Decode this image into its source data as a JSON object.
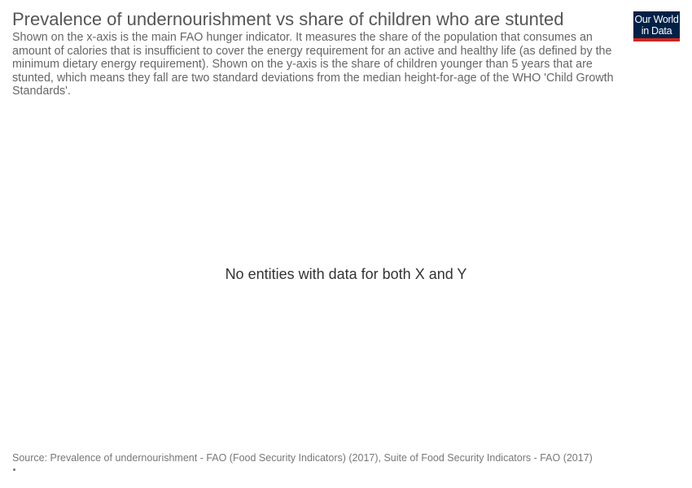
{
  "header": {
    "title": "Prevalence of undernourishment vs share of children who are stunted",
    "subtitle": "Shown on the x-axis is the main FAO hunger indicator. It measures the share of the population that consumes an amount of calories that is insufficient to cover the energy requirement for an active and healthy life (as defined by the minimum dietary energy requirement). Shown on the y-axis is the share of children younger than 5 years that are stunted, which means they fall are two standard deviations from the median height-for-age of the WHO 'Child Growth Standards'."
  },
  "logo": {
    "line1": "Our World",
    "line2": "in Data",
    "bg_color": "#002147",
    "accent_color": "#ce261e"
  },
  "chart_data": {
    "type": "scatter",
    "title": "Prevalence of undernourishment vs share of children who are stunted",
    "xlabel": "",
    "ylabel": "",
    "series": [],
    "empty_message": "No entities with data for both X and Y"
  },
  "footer": {
    "source": "Source: Prevalence of undernourishment - FAO (Food Security Indicators) (2017), Suite of Food Security Indicators - FAO (2017)"
  }
}
